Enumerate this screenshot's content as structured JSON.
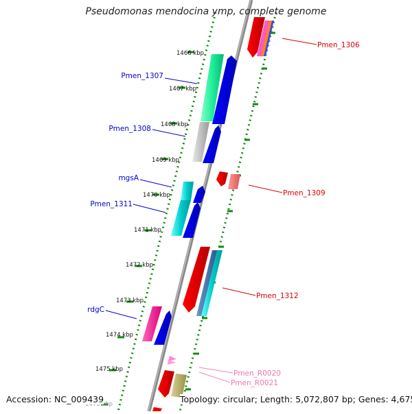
{
  "title": "Pseudomonas mendocina ymp, complete genome",
  "footer": {
    "accession": "Accession: NC_009439",
    "topology": "Topology: circular; Length: 5,072,807 bp; Genes: 4,675"
  },
  "kbp_labels": [
    "1466 kbp",
    "1467 kbp",
    "1468 kbp",
    "1469 kbp",
    "1470 kbp",
    "1471 kbp",
    "1472 kbp",
    "1473 kbp",
    "1474 kbp",
    "1475 kbp",
    "1476 kbp"
  ],
  "gene_labels": [
    {
      "text": "Pmen_1306",
      "color": "#dd0000"
    },
    {
      "text": "Pmen_1307",
      "color": "#0000cc"
    },
    {
      "text": "Pmen_1308",
      "color": "#0000cc"
    },
    {
      "text": "mgsA",
      "color": "#0000cc"
    },
    {
      "text": "Pmen_1309",
      "color": "#dd0000"
    },
    {
      "text": "Pmen_1311",
      "color": "#0000cc"
    },
    {
      "text": "Pmen_1312",
      "color": "#dd0000"
    },
    {
      "text": "rdgC",
      "color": "#0000cc"
    },
    {
      "text": "Pmen_R0020",
      "color": "#ee77aa"
    },
    {
      "text": "Pmen_R0021",
      "color": "#ee77aa"
    }
  ],
  "colors": {
    "backbone": "#8a8a8a",
    "tick_green": "#118811",
    "forward_strand": "#0000ee",
    "reverse_strand": "#ee0000",
    "label_forward": "#0000cc",
    "label_reverse": "#dd0000",
    "rna": "#ff88cc"
  }
}
